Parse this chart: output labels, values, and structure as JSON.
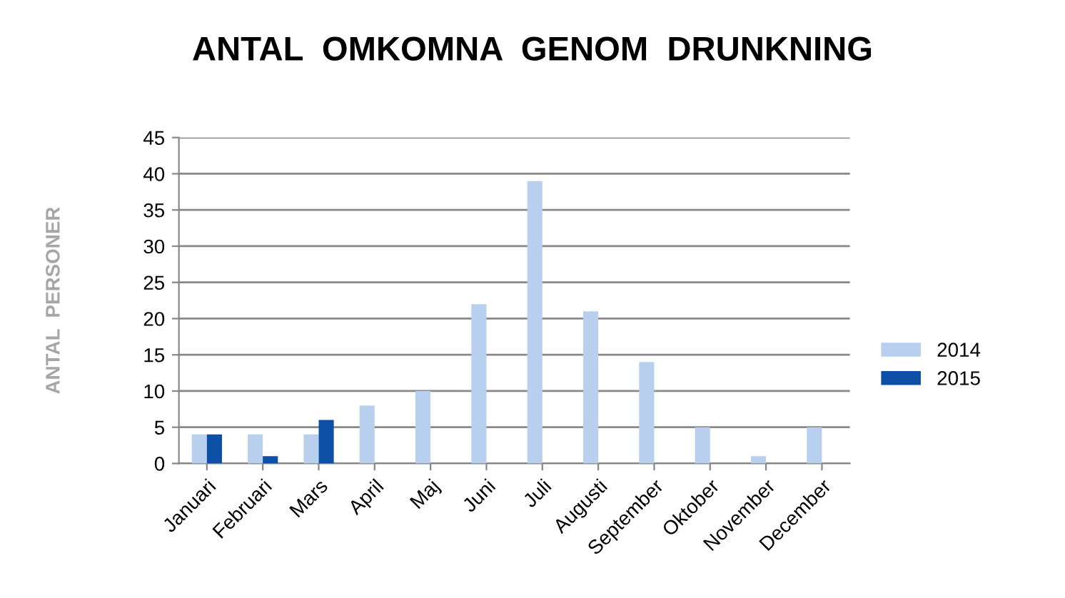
{
  "chart_data": {
    "type": "bar",
    "title": "ANTAL  OMKOMNA  GENOM  DRUNKNING",
    "ylabel": "ANTAL  PERSONER",
    "categories": [
      "Januari",
      "Februari",
      "Mars",
      "April",
      "Maj",
      "Juni",
      "Juli",
      "Augusti",
      "September",
      "Oktober",
      "November",
      "December"
    ],
    "series": [
      {
        "name": "2014",
        "color": "#b9cfee",
        "values": [
          4,
          4,
          4,
          8,
          10,
          22,
          39,
          21,
          14,
          5,
          1,
          5
        ]
      },
      {
        "name": "2015",
        "color": "#0d4ea6",
        "values": [
          4,
          1,
          6,
          null,
          null,
          null,
          null,
          null,
          null,
          null,
          null,
          null
        ]
      }
    ],
    "ylim": [
      0,
      45
    ],
    "yticks": [
      0,
      5,
      10,
      15,
      20,
      25,
      30,
      35,
      40,
      45
    ],
    "grid": "y",
    "legend": "right"
  }
}
